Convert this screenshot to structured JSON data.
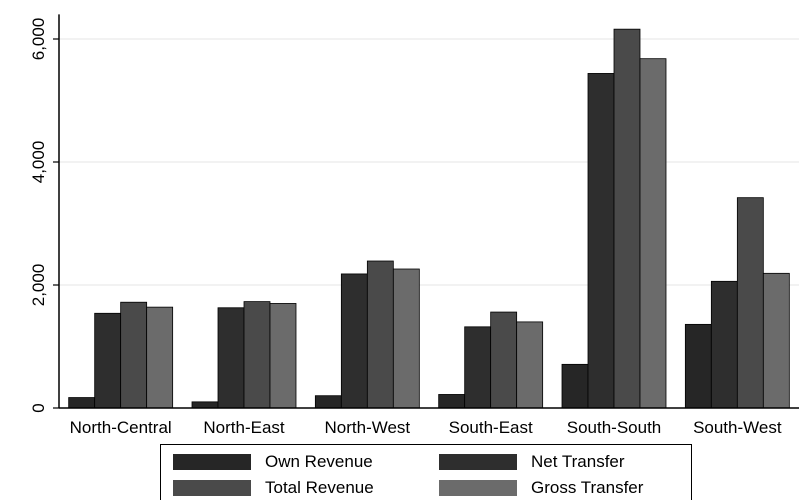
{
  "chart_data": {
    "type": "bar",
    "title": "",
    "xlabel": "",
    "ylabel": "",
    "categories": [
      "North-Central",
      "North-East",
      "North-West",
      "South-East",
      "South-South",
      "South-West"
    ],
    "series": [
      {
        "name": "Own Revenue",
        "color": "#262626",
        "values": [
          170,
          100,
          200,
          220,
          710,
          1360
        ]
      },
      {
        "name": "Net Transfer",
        "color": "#2e2e2e",
        "values": [
          1540,
          1630,
          2180,
          1320,
          5440,
          2060
        ]
      },
      {
        "name": "Total Revenue",
        "color": "#4a4a4a",
        "values": [
          1720,
          1730,
          2390,
          1560,
          6160,
          3420
        ]
      },
      {
        "name": "Gross Transfer",
        "color": "#6b6b6b",
        "values": [
          1640,
          1700,
          2260,
          1400,
          5680,
          2190
        ]
      }
    ],
    "ylim": [
      0,
      6400
    ],
    "yticks": [
      0,
      2000,
      4000,
      6000
    ],
    "ytick_labels": [
      "0",
      "2,000",
      "4,000",
      "6,000"
    ],
    "grid": true,
    "legend_position": "bottom"
  }
}
